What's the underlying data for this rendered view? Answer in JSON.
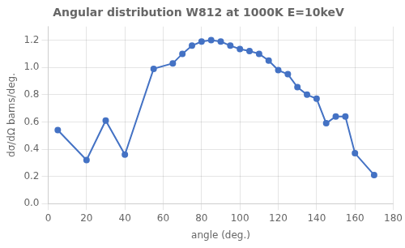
{
  "chart_data": {
    "type": "line",
    "title": "Angular distribution W812 at 1000K E=10keV",
    "xlabel": "angle (deg.)",
    "ylabel": "dσ/dΩ barns/deg.",
    "x": [
      5,
      20,
      30,
      40,
      55,
      65,
      70,
      75,
      80,
      85,
      90,
      95,
      100,
      105,
      110,
      115,
      120,
      125,
      130,
      135,
      140,
      145,
      150,
      155,
      160,
      170
    ],
    "values": [
      0.54,
      0.32,
      0.61,
      0.36,
      0.99,
      1.03,
      1.1,
      1.16,
      1.19,
      1.2,
      1.19,
      1.16,
      1.135,
      1.12,
      1.1,
      1.05,
      0.98,
      0.95,
      0.855,
      0.8,
      0.77,
      0.59,
      0.64,
      0.64,
      0.37,
      0.21
    ],
    "color": "#4472c4",
    "marker": "circle",
    "xlim": [
      0,
      180
    ],
    "ylim": [
      0,
      1.3
    ],
    "xticks": [
      0,
      20,
      40,
      60,
      80,
      100,
      120,
      140,
      160,
      180
    ],
    "yticks": [
      {
        "value": 0,
        "label": "0.0"
      },
      0.2,
      0.4,
      0.6,
      0.8,
      {
        "value": 1,
        "label": "1.0"
      },
      1.2
    ],
    "grid": true
  }
}
